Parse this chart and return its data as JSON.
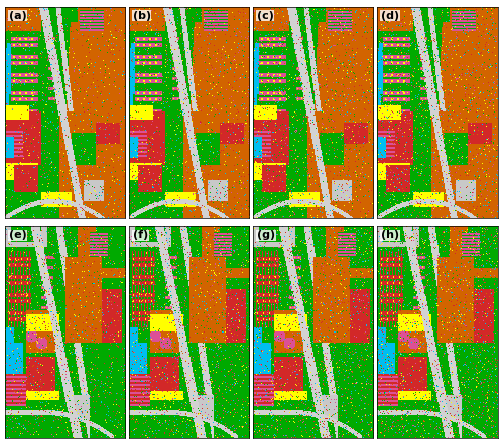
{
  "labels": [
    "(a)",
    "(b)",
    "(c)",
    "(d)",
    "(e)",
    "(f)",
    "(g)",
    "(h)"
  ],
  "grid_cols": 4,
  "grid_rows": 2,
  "bg_color": "#ffffff",
  "label_fontsize": 8,
  "class_colors": {
    "meadows": [
      0,
      170,
      0
    ],
    "asphalt": [
      200,
      200,
      200
    ],
    "gravel": [
      210,
      100,
      0
    ],
    "trees": [
      0,
      120,
      0
    ],
    "metal": [
      220,
      80,
      150
    ],
    "bare_soil": [
      210,
      40,
      40
    ],
    "bitumen": [
      255,
      255,
      0
    ],
    "bricks": [
      190,
      50,
      50
    ],
    "shadows": [
      0,
      190,
      240
    ],
    "orange_brown": [
      200,
      110,
      30
    ],
    "pink_light": [
      230,
      150,
      180
    ]
  }
}
